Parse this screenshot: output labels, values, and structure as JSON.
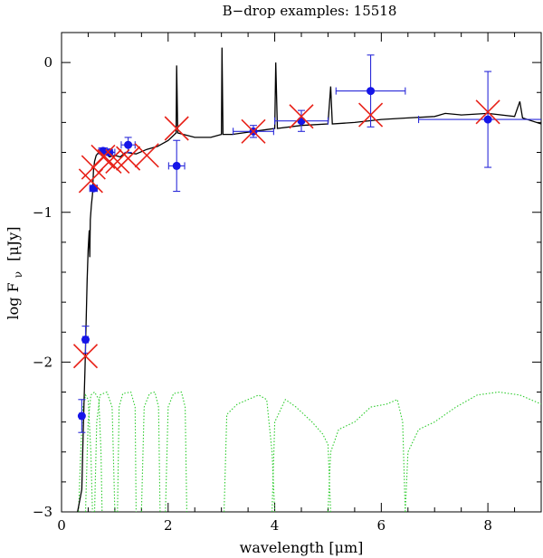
{
  "chart_data": {
    "type": "scatter",
    "title": "B−drop examples: 15518",
    "xlabel": "wavelength [μm]",
    "ylabel": "log F",
    "ylabel_sub": "ν",
    "ylabel_unit": "[μJy]",
    "xlim": [
      0,
      9
    ],
    "ylim": [
      -3,
      0.2
    ],
    "xticks_major": [
      0,
      2,
      4,
      6,
      8
    ],
    "xtick_labels": [
      "0",
      "2",
      "4",
      "6",
      "8"
    ],
    "yticks_major": [
      -3,
      -2,
      -1,
      0
    ],
    "ytick_labels": [
      "−3",
      "−2",
      "−1",
      "0"
    ],
    "colors": {
      "observed": "#1515e8",
      "errorbar": "#2b2bd9",
      "model_points": "#e8231a",
      "sed": "#000000",
      "filters": "#2ecc2e"
    },
    "observed_points": [
      {
        "x": 0.38,
        "y": -2.36,
        "xerr": 0.04,
        "yerr": 0.11
      },
      {
        "x": 0.45,
        "y": -1.85,
        "xerr": 0.05,
        "yerr": 0.09
      },
      {
        "x": 0.6,
        "y": -0.84,
        "xerr": 0.07,
        "yerr": 0.02
      },
      {
        "x": 0.78,
        "y": -0.59,
        "xerr": 0.08,
        "yerr": 0.02
      },
      {
        "x": 0.9,
        "y": -0.6,
        "xerr": 0.1,
        "yerr": 0.02
      },
      {
        "x": 1.25,
        "y": -0.55,
        "xerr": 0.13,
        "yerr": 0.05
      },
      {
        "x": 2.16,
        "y": -0.69,
        "xerr": 0.15,
        "yerr": 0.17
      },
      {
        "x": 3.6,
        "y": -0.46,
        "xerr": 0.38,
        "yerr": 0.04
      },
      {
        "x": 4.5,
        "y": -0.39,
        "xerr": 0.5,
        "yerr": 0.07
      },
      {
        "x": 5.8,
        "y": -0.19,
        "xerr": 0.65,
        "yerr": 0.24
      },
      {
        "x": 8.0,
        "y": -0.38,
        "xerr": 1.3,
        "yerr": 0.32
      }
    ],
    "model_points": [
      {
        "x": 0.45,
        "y": -1.96
      },
      {
        "x": 0.55,
        "y": -0.79
      },
      {
        "x": 0.6,
        "y": -0.7
      },
      {
        "x": 0.78,
        "y": -0.63
      },
      {
        "x": 0.9,
        "y": -0.66
      },
      {
        "x": 1.05,
        "y": -0.66
      },
      {
        "x": 1.25,
        "y": -0.64
      },
      {
        "x": 1.6,
        "y": -0.62
      },
      {
        "x": 2.16,
        "y": -0.44
      },
      {
        "x": 3.6,
        "y": -0.46
      },
      {
        "x": 4.5,
        "y": -0.36
      },
      {
        "x": 5.8,
        "y": -0.35
      },
      {
        "x": 8.0,
        "y": -0.33
      }
    ],
    "sed_curve": [
      [
        0.3,
        -3.0
      ],
      [
        0.38,
        -2.85
      ],
      [
        0.4,
        -2.55
      ],
      [
        0.42,
        -2.3
      ],
      [
        0.44,
        -2.05
      ],
      [
        0.46,
        -1.75
      ],
      [
        0.48,
        -1.45
      ],
      [
        0.5,
        -1.25
      ],
      [
        0.52,
        -1.12
      ],
      [
        0.53,
        -1.3
      ],
      [
        0.54,
        -1.05
      ],
      [
        0.56,
        -0.95
      ],
      [
        0.58,
        -0.88
      ],
      [
        0.6,
        -0.72
      ],
      [
        0.62,
        -0.66
      ],
      [
        0.65,
        -0.62
      ],
      [
        0.7,
        -0.6
      ],
      [
        0.75,
        -0.62
      ],
      [
        0.8,
        -0.6
      ],
      [
        0.9,
        -0.63
      ],
      [
        1.0,
        -0.62
      ],
      [
        1.1,
        -0.63
      ],
      [
        1.2,
        -0.6
      ],
      [
        1.4,
        -0.61
      ],
      [
        1.6,
        -0.58
      ],
      [
        1.8,
        -0.56
      ],
      [
        2.0,
        -0.52
      ],
      [
        2.15,
        -0.47
      ],
      [
        2.16,
        -0.02
      ],
      [
        2.18,
        -0.47
      ],
      [
        2.5,
        -0.5
      ],
      [
        2.8,
        -0.5
      ],
      [
        3.0,
        -0.48
      ],
      [
        3.01,
        0.1
      ],
      [
        3.03,
        -0.48
      ],
      [
        3.2,
        -0.48
      ],
      [
        3.4,
        -0.47
      ],
      [
        3.6,
        -0.46
      ],
      [
        3.8,
        -0.45
      ],
      [
        4.0,
        -0.44
      ],
      [
        4.02,
        0.0
      ],
      [
        4.05,
        -0.44
      ],
      [
        4.5,
        -0.42
      ],
      [
        5.0,
        -0.41
      ],
      [
        5.05,
        -0.16
      ],
      [
        5.08,
        -0.41
      ],
      [
        5.5,
        -0.4
      ],
      [
        6.0,
        -0.38
      ],
      [
        6.5,
        -0.37
      ],
      [
        7.0,
        -0.36
      ],
      [
        7.2,
        -0.34
      ],
      [
        7.5,
        -0.35
      ],
      [
        8.0,
        -0.34
      ],
      [
        8.5,
        -0.36
      ],
      [
        8.6,
        -0.26
      ],
      [
        8.65,
        -0.37
      ],
      [
        9.0,
        -0.41
      ]
    ],
    "filter_curves": [
      [
        [
          0.32,
          -3.0
        ],
        [
          0.36,
          -2.6
        ],
        [
          0.4,
          -2.3
        ],
        [
          0.45,
          -2.22
        ],
        [
          0.5,
          -2.25
        ],
        [
          0.55,
          -2.6
        ],
        [
          0.58,
          -3.0
        ]
      ],
      [
        [
          0.45,
          -3.0
        ],
        [
          0.5,
          -2.4
        ],
        [
          0.55,
          -2.22
        ],
        [
          0.62,
          -2.2
        ],
        [
          0.7,
          -2.25
        ],
        [
          0.74,
          -2.6
        ],
        [
          0.76,
          -3.0
        ]
      ],
      [
        [
          0.62,
          -3.0
        ],
        [
          0.66,
          -2.4
        ],
        [
          0.72,
          -2.22
        ],
        [
          0.85,
          -2.2
        ],
        [
          0.95,
          -2.3
        ],
        [
          1.0,
          -3.0
        ]
      ],
      [
        [
          1.05,
          -3.0
        ],
        [
          1.08,
          -2.3
        ],
        [
          1.15,
          -2.21
        ],
        [
          1.3,
          -2.2
        ],
        [
          1.38,
          -2.3
        ],
        [
          1.4,
          -3.0
        ]
      ],
      [
        [
          1.5,
          -3.0
        ],
        [
          1.55,
          -2.3
        ],
        [
          1.65,
          -2.21
        ],
        [
          1.75,
          -2.2
        ],
        [
          1.82,
          -2.3
        ],
        [
          1.85,
          -3.0
        ]
      ],
      [
        [
          1.95,
          -3.0
        ],
        [
          2.0,
          -2.3
        ],
        [
          2.1,
          -2.21
        ],
        [
          2.25,
          -2.2
        ],
        [
          2.32,
          -2.3
        ],
        [
          2.35,
          -3.0
        ]
      ],
      [
        [
          3.05,
          -3.0
        ],
        [
          3.1,
          -2.35
        ],
        [
          3.3,
          -2.28
        ],
        [
          3.5,
          -2.25
        ],
        [
          3.7,
          -2.22
        ],
        [
          3.85,
          -2.25
        ],
        [
          3.95,
          -2.6
        ],
        [
          4.0,
          -3.0
        ]
      ],
      [
        [
          3.95,
          -3.0
        ],
        [
          4.0,
          -2.4
        ],
        [
          4.2,
          -2.25
        ],
        [
          4.4,
          -2.3
        ],
        [
          4.7,
          -2.4
        ],
        [
          4.9,
          -2.48
        ],
        [
          5.0,
          -2.55
        ],
        [
          5.05,
          -3.0
        ]
      ],
      [
        [
          5.0,
          -3.0
        ],
        [
          5.05,
          -2.6
        ],
        [
          5.2,
          -2.45
        ],
        [
          5.5,
          -2.4
        ],
        [
          5.8,
          -2.3
        ],
        [
          6.1,
          -2.28
        ],
        [
          6.3,
          -2.25
        ],
        [
          6.4,
          -2.4
        ],
        [
          6.45,
          -3.0
        ]
      ],
      [
        [
          6.45,
          -3.0
        ],
        [
          6.5,
          -2.6
        ],
        [
          6.7,
          -2.45
        ],
        [
          7.0,
          -2.4
        ],
        [
          7.4,
          -2.3
        ],
        [
          7.8,
          -2.22
        ],
        [
          8.2,
          -2.2
        ],
        [
          8.6,
          -2.22
        ],
        [
          9.0,
          -2.28
        ]
      ]
    ]
  }
}
